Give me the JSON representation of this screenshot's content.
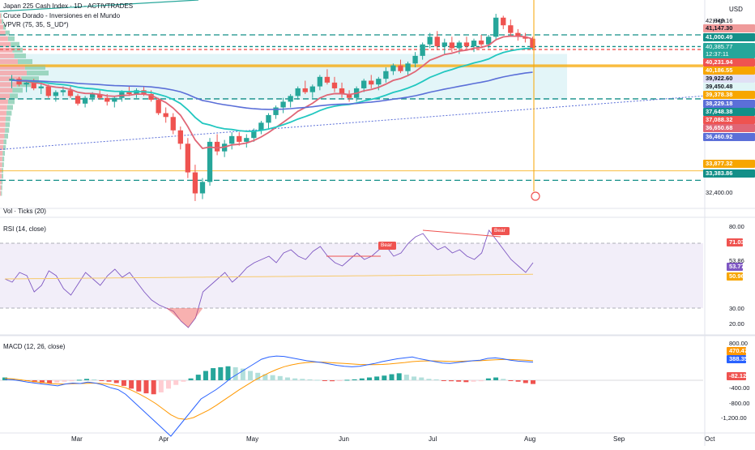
{
  "header": {
    "symbol_title": "Japan 225 Cash Index · 1D · ACTIVTRADES",
    "indicator_1": "Cruce Dorado - Inversiones en el Mundo",
    "indicator_2": "VPVR (75, 35, S_UD*)",
    "currency": "USD",
    "high_label": "High"
  },
  "colors": {
    "up": "#26a69a",
    "down": "#ef5350",
    "ema_fast": "#e06676",
    "ema_mid": "#22c7c0",
    "ema_slow": "#5b6fd8",
    "rsi": "#7e57c2",
    "macd": "#2962ff",
    "signal": "#ff9800",
    "level": "#138f88",
    "orange": "#f7a600"
  },
  "price_pane": {
    "axis_labels": [
      "42,049.16",
      "41,147.30",
      "41,000.49",
      "40,385.77",
      "12:37:11",
      "40,231.94",
      "40,186.55",
      "39,922.60",
      "39,450.48",
      "39,378.38",
      "38,229.18",
      "37,648.38",
      "37,088.32",
      "36,650.68",
      "36,460.92",
      "33,877.32",
      "33,383.86",
      "32,400.00"
    ],
    "axis_label_colors": [
      "#ffffff",
      "#ef9a9a",
      "#138f88",
      "#ffffff",
      "#ffffff",
      "#ef5350",
      "#f7a600",
      "#e0e0f5",
      "#e0f5f5",
      "#f7a600",
      "#5b6fd8",
      "#138f88",
      "#ef5350",
      "#e06676",
      "#5b6fd8",
      "#f7a600",
      "#138f88",
      "#ffffff"
    ]
  },
  "volume_label": "Vol · Ticks (20)",
  "rsi_pane": {
    "title": "RSI (14, close)",
    "ticks": [
      "80.00",
      "53.86",
      "30.00",
      "20.00"
    ],
    "current_labels": [
      "71.03",
      "53.77",
      "50.96"
    ],
    "bear_label": "Bear"
  },
  "macd_pane": {
    "title": "MACD (12, 26, close)",
    "ticks": [
      "800.00",
      "-400.00",
      "-800.00",
      "-1,200.00"
    ],
    "current_labels": [
      "470.47",
      "388.35",
      "-82.12"
    ]
  },
  "x_axis": [
    "Mar",
    "Apr",
    "May",
    "Jun",
    "Jul",
    "Aug",
    "Sep",
    "Oct"
  ],
  "chart_data": {
    "type": "candlestick",
    "title": "Japan 225 Cash Index · 1D · ACTIVTRADES",
    "ylim": [
      32000,
      42400
    ],
    "levels": [
      41000.49,
      40385.77,
      40231.94,
      39378.38,
      37648.38,
      33383.86
    ],
    "candles": [
      [
        38600,
        38900,
        38200,
        38700
      ],
      [
        38700,
        38800,
        38300,
        38400
      ],
      [
        38400,
        38600,
        38000,
        38500
      ],
      [
        38500,
        38700,
        38100,
        38200
      ],
      [
        38200,
        38500,
        37900,
        38300
      ],
      [
        38300,
        38400,
        37700,
        37800
      ],
      [
        37800,
        38100,
        37500,
        38000
      ],
      [
        38000,
        38300,
        37800,
        38100
      ],
      [
        38100,
        38300,
        37700,
        37800
      ],
      [
        37800,
        37900,
        37300,
        37400
      ],
      [
        37400,
        37800,
        37200,
        37700
      ],
      [
        37700,
        38000,
        37500,
        37900
      ],
      [
        37900,
        38100,
        37600,
        37700
      ],
      [
        37700,
        37900,
        37300,
        37500
      ],
      [
        37500,
        37800,
        37200,
        37700
      ],
      [
        37700,
        38100,
        37500,
        38000
      ],
      [
        38000,
        38300,
        37800,
        37900
      ],
      [
        37900,
        38200,
        37700,
        38100
      ],
      [
        38100,
        38300,
        37800,
        37900
      ],
      [
        37900,
        38100,
        37500,
        37600
      ],
      [
        37600,
        37700,
        36800,
        36900
      ],
      [
        36900,
        37200,
        36400,
        36700
      ],
      [
        36700,
        36900,
        35800,
        36000
      ],
      [
        36000,
        36200,
        35000,
        35300
      ],
      [
        35300,
        35600,
        33500,
        33800
      ],
      [
        33800,
        34200,
        32300,
        32700
      ],
      [
        32700,
        33500,
        32400,
        33300
      ],
      [
        33300,
        35600,
        33100,
        35400
      ],
      [
        35400,
        35800,
        34700,
        34900
      ],
      [
        34900,
        35500,
        34600,
        35300
      ],
      [
        35300,
        35900,
        35000,
        35700
      ],
      [
        35700,
        35900,
        35200,
        35400
      ],
      [
        35400,
        35800,
        35100,
        35600
      ],
      [
        35600,
        36100,
        35400,
        36000
      ],
      [
        36000,
        36500,
        35800,
        36400
      ],
      [
        36400,
        36900,
        36100,
        36800
      ],
      [
        36800,
        37300,
        36600,
        37200
      ],
      [
        37200,
        37700,
        36900,
        37500
      ],
      [
        37500,
        37900,
        37200,
        37800
      ],
      [
        37800,
        38300,
        37600,
        38200
      ],
      [
        38200,
        38600,
        37900,
        38000
      ],
      [
        38000,
        38400,
        37700,
        38300
      ],
      [
        38300,
        38900,
        38100,
        38800
      ],
      [
        38800,
        39200,
        38400,
        38500
      ],
      [
        38500,
        38800,
        38000,
        38200
      ],
      [
        38200,
        38500,
        37700,
        37900
      ],
      [
        37900,
        38100,
        37500,
        37700
      ],
      [
        37700,
        38300,
        37500,
        38200
      ],
      [
        38200,
        38700,
        38000,
        38600
      ],
      [
        38600,
        38900,
        38200,
        38400
      ],
      [
        38400,
        38800,
        38100,
        38700
      ],
      [
        38700,
        39300,
        38500,
        39100
      ],
      [
        39100,
        39500,
        38900,
        39400
      ],
      [
        39400,
        39700,
        39000,
        39100
      ],
      [
        39100,
        39600,
        38900,
        39500
      ],
      [
        39500,
        40100,
        39300,
        39900
      ],
      [
        39900,
        40600,
        39700,
        40500
      ],
      [
        40500,
        41100,
        40300,
        40900
      ],
      [
        40900,
        41200,
        40200,
        40400
      ],
      [
        40400,
        40800,
        40000,
        40600
      ],
      [
        40600,
        40900,
        40100,
        40300
      ],
      [
        40300,
        40700,
        40000,
        40600
      ],
      [
        40600,
        40900,
        40200,
        40400
      ],
      [
        40400,
        40800,
        40100,
        40700
      ],
      [
        40700,
        41000,
        40300,
        40500
      ],
      [
        40500,
        41000,
        40300,
        40900
      ],
      [
        40900,
        42100,
        40700,
        41900
      ],
      [
        41900,
        42000,
        41300,
        41500
      ],
      [
        41500,
        41800,
        40900,
        41100
      ],
      [
        41100,
        41300,
        40700,
        40900
      ],
      [
        40900,
        41100,
        40600,
        40800
      ],
      [
        40800,
        40900,
        40200,
        40300
      ]
    ]
  }
}
